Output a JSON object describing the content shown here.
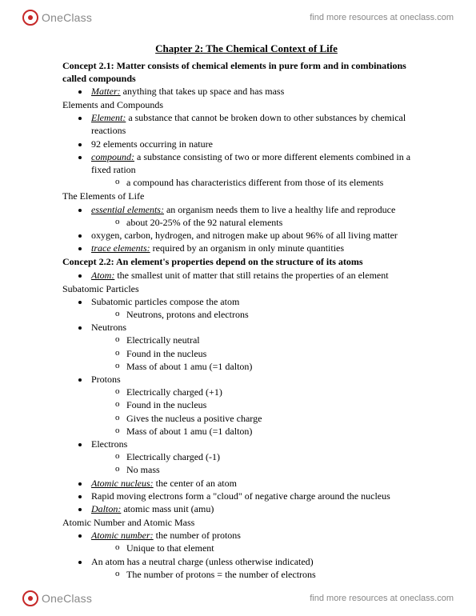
{
  "brand": {
    "one": "One",
    "class": "Class"
  },
  "tagline": "find more resources at oneclass.com",
  "chapterTitle": "Chapter 2: The Chemical Context of Life",
  "concept21": "Concept 2.1: Matter consists of chemical elements in pure form and in combinations called compounds",
  "matter": {
    "term": "Matter:",
    "def": " anything that takes up space and has mass"
  },
  "secElemComp": "Elements and Compounds",
  "element": {
    "term": "Element:",
    "def": " a substance that cannot be broken down to other substances by chemical reactions"
  },
  "elem92": "92 elements occurring in nature",
  "compound": {
    "term": "compound:",
    "def": " a substance consisting of two or more different elements combined in a fixed ration"
  },
  "compoundSub": "a compound has characteristics different from those of its elements",
  "secElemLife": "The Elements of Life",
  "essential": {
    "term": "essential elements:",
    "def": " an organism needs them to live a healthy life and reproduce"
  },
  "essentialSub": "about 20-25% of the 92 natural elements",
  "ochn": "oxygen, carbon, hydrogen, and nitrogen make up about 96% of all living matter",
  "trace": {
    "term": "trace elements:",
    "def": " required by an organism in only minute quantities"
  },
  "concept22": "Concept 2.2: An element's properties depend on the structure of its atoms",
  "atom": {
    "term": "Atom:",
    "def": " the smallest unit of matter that still retains the properties of an element"
  },
  "secSubatomic": "Subatomic Particles",
  "subCompose": "Subatomic particles compose the atom",
  "subComposeSub": "Neutrons, protons and electrons",
  "neutrons": "Neutrons",
  "nSub1": "Electrically neutral",
  "nSub2": "Found in the nucleus",
  "nSub3": "Mass of about 1 amu (=1 dalton)",
  "protons": "Protons",
  "pSub1": "Electrically charged (+1)",
  "pSub2": "Found in the nucleus",
  "pSub3": "Gives the nucleus a positive charge",
  "pSub4": "Mass of about 1 amu (=1 dalton)",
  "electrons": "Electrons",
  "eSub1": "Electrically charged (-1)",
  "eSub2": "No mass",
  "nucleus": {
    "term": "Atomic nucleus:",
    "def": " the center of an atom"
  },
  "cloud": "Rapid moving electrons form a \"cloud\" of negative charge around the nucleus",
  "dalton": {
    "term": "Dalton:",
    "def": " atomic mass unit (amu)"
  },
  "secAtomicNum": "Atomic Number and Atomic Mass",
  "atomicNum": {
    "term": "Atomic number:",
    "def": " the number of protons"
  },
  "atomicNumSub": "Unique to that element",
  "neutralCharge": "An atom has a neutral charge (unless otherwise indicated)",
  "neutralChargeSub": "The number of protons = the number of electrons"
}
